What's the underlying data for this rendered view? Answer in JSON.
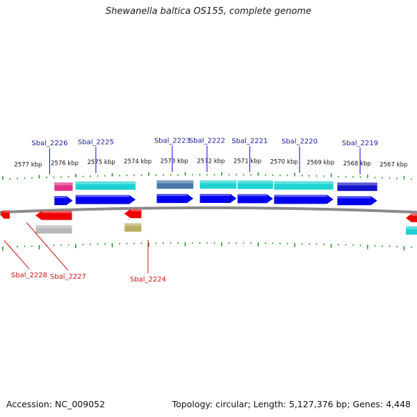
{
  "title": "Shewanella baltica OS155, complete genome",
  "accession": "Accession: NC_009052",
  "summary": "Topology: circular; Length: 5,127,376 bp; Genes: 4,448",
  "colors": {
    "backbone": "#8a8a8a",
    "tick": "#1e8c1e",
    "cds": "#0000ee",
    "cds_reverse": "#ee0000",
    "label_forward": "#1a1aa0",
    "label_reverse": "#cc1111",
    "cog_magenta": "#e0308a",
    "cog_cyan": "#1ed2d2",
    "cog_steel": "#4a78a8",
    "cog_navy": "#1414c8",
    "cog_gray": "#b8b8b8",
    "cog_olive": "#b8ad60"
  },
  "scale_labels": [
    {
      "kbp": 2577,
      "text": "2577 kbp"
    },
    {
      "kbp": 2576,
      "text": "2576 kbp"
    },
    {
      "kbp": 2575,
      "text": "2575 kbp"
    },
    {
      "kbp": 2574,
      "text": "2574 kbp"
    },
    {
      "kbp": 2573,
      "text": "2573 kbp"
    },
    {
      "kbp": 2572,
      "text": "2572 kbp"
    },
    {
      "kbp": 2571,
      "text": "2571 kbp"
    },
    {
      "kbp": 2570,
      "text": "2570 kbp"
    },
    {
      "kbp": 2569,
      "text": "2569 kbp"
    },
    {
      "kbp": 2568,
      "text": "2568 kbp"
    },
    {
      "kbp": 2567,
      "text": "2567 kbp"
    }
  ],
  "forward_genes": [
    {
      "name": "Sbal_2226",
      "cog": "cog_magenta"
    },
    {
      "name": "Sbal_2225",
      "cog": "cog_cyan"
    },
    {
      "name": "Sbal_2223",
      "cog": "cog_steel"
    },
    {
      "name": "Sbal_2222",
      "cog": "cog_cyan"
    },
    {
      "name": "Sbal_2221",
      "cog": "cog_cyan"
    },
    {
      "name": "Sbal_2220",
      "cog": "cog_cyan"
    },
    {
      "name": "Sbal_2219",
      "cog": "cog_navy"
    }
  ],
  "reverse_genes": [
    {
      "name": "Sbal_2228",
      "cog": "cog_gray"
    },
    {
      "name": "Sbal_2227",
      "cog": "cog_gray"
    },
    {
      "name": "Sbal_2224",
      "cog": "cog_olive"
    }
  ]
}
